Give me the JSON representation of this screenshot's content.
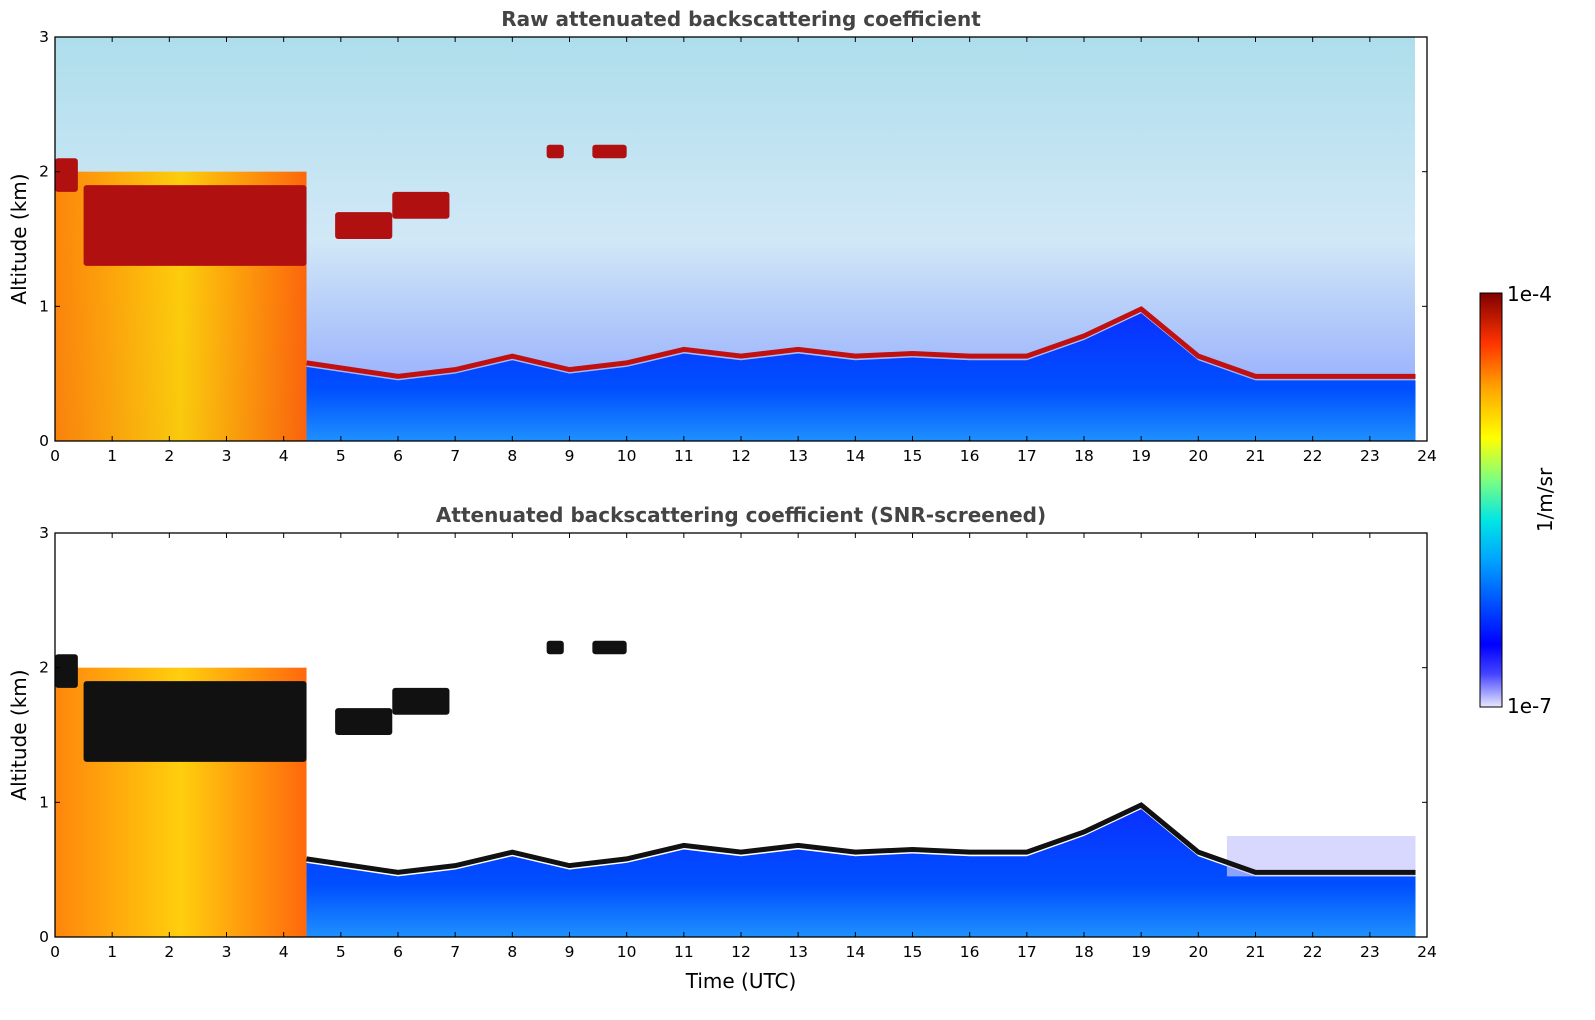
{
  "chart_data": [
    {
      "type": "heatmap",
      "title": "Raw attenuated backscattering coefficient",
      "xlabel": "",
      "ylabel": "Altitude (km)",
      "xlim": [
        0,
        24
      ],
      "ylim": [
        0,
        3
      ],
      "x_ticks": [
        "0",
        "1",
        "2",
        "3",
        "4",
        "5",
        "6",
        "7",
        "8",
        "9",
        "10",
        "11",
        "12",
        "13",
        "14",
        "15",
        "16",
        "17",
        "18",
        "19",
        "20",
        "21",
        "22",
        "23",
        "24"
      ],
      "y_ticks": [
        "0",
        "1",
        "2",
        "3"
      ],
      "data_end_time": 23.8,
      "boundary_layer_top_km": [
        {
          "t": 4.4,
          "z": 0.55
        },
        {
          "t": 6,
          "z": 0.45
        },
        {
          "t": 7,
          "z": 0.5
        },
        {
          "t": 8,
          "z": 0.6
        },
        {
          "t": 9,
          "z": 0.5
        },
        {
          "t": 10,
          "z": 0.55
        },
        {
          "t": 11,
          "z": 0.65
        },
        {
          "t": 12,
          "z": 0.6
        },
        {
          "t": 13,
          "z": 0.65
        },
        {
          "t": 14,
          "z": 0.6
        },
        {
          "t": 15,
          "z": 0.62
        },
        {
          "t": 16,
          "z": 0.6
        },
        {
          "t": 17,
          "z": 0.6
        },
        {
          "t": 18,
          "z": 0.75
        },
        {
          "t": 19,
          "z": 0.95
        },
        {
          "t": 20,
          "z": 0.6
        },
        {
          "t": 21,
          "z": 0.45
        },
        {
          "t": 22,
          "z": 0.45
        },
        {
          "t": 23,
          "z": 0.45
        },
        {
          "t": 23.8,
          "z": 0.45
        }
      ],
      "cloud_layers": [
        {
          "t_start": 0.0,
          "t_end": 0.4,
          "z_base_km": 1.85,
          "z_top_km": 2.1
        },
        {
          "t_start": 0.5,
          "t_end": 4.4,
          "z_base_km": 1.3,
          "z_top_km": 1.9
        },
        {
          "t_start": 4.9,
          "t_end": 5.9,
          "z_base_km": 1.5,
          "z_top_km": 1.7
        },
        {
          "t_start": 5.9,
          "t_end": 6.9,
          "z_base_km": 1.65,
          "z_top_km": 1.85
        },
        {
          "t_start": 8.6,
          "t_end": 8.9,
          "z_base_km": 2.1,
          "z_top_km": 2.2
        },
        {
          "t_start": 9.4,
          "t_end": 10.0,
          "z_base_km": 2.1,
          "z_top_km": 2.2
        }
      ]
    },
    {
      "type": "heatmap",
      "title": "Attenuated backscattering coefficient (SNR-screened)",
      "xlabel": "Time (UTC)",
      "ylabel": "Altitude (km)",
      "xlim": [
        0,
        24
      ],
      "ylim": [
        0,
        3
      ],
      "x_ticks": [
        "0",
        "1",
        "2",
        "3",
        "4",
        "5",
        "6",
        "7",
        "8",
        "9",
        "10",
        "11",
        "12",
        "13",
        "14",
        "15",
        "16",
        "17",
        "18",
        "19",
        "20",
        "21",
        "22",
        "23",
        "24"
      ],
      "y_ticks": [
        "0",
        "1",
        "2",
        "3"
      ],
      "data_end_time": 23.8
    }
  ],
  "colorbar": {
    "label": "1/m/sr",
    "max_label": "1e-4",
    "min_label": "1e-7",
    "scale": "log",
    "colormap": [
      "#e8e8ff",
      "#0000ff",
      "#00a0ff",
      "#00e5e5",
      "#7fff7f",
      "#ffff00",
      "#ffa500",
      "#ff3300",
      "#800000"
    ]
  }
}
